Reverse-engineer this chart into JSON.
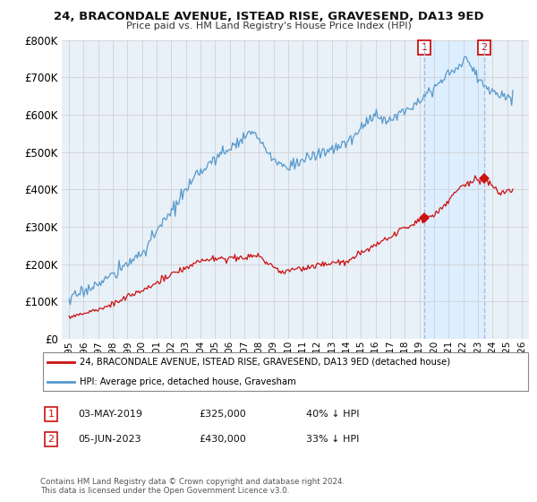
{
  "title": "24, BRACONDALE AVENUE, ISTEAD RISE, GRAVESEND, DA13 9ED",
  "subtitle": "Price paid vs. HM Land Registry's House Price Index (HPI)",
  "ylim": [
    0,
    800000
  ],
  "yticks": [
    0,
    100000,
    200000,
    300000,
    400000,
    500000,
    600000,
    700000,
    800000
  ],
  "xlim_left": 1994.5,
  "xlim_right": 2026.5,
  "hpi_color": "#5599cc",
  "price_color": "#cc1111",
  "vline_color": "#aabbdd",
  "shade_color": "#ddeeff",
  "grid_color": "#cccccc",
  "plot_bg": "#e8f0f8",
  "fig_bg": "#ffffff",
  "sale1_year": 2019.33,
  "sale1_price": 325000,
  "sale1_date": "03-MAY-2019",
  "sale1_pct": "40% ↓ HPI",
  "sale2_year": 2023.42,
  "sale2_price": 430000,
  "sale2_date": "05-JUN-2023",
  "sale2_pct": "33% ↓ HPI",
  "badge_color": "#cc1111",
  "legend1": "24, BRACONDALE AVENUE, ISTEAD RISE, GRAVESEND, DA13 9ED (detached house)",
  "legend2": "HPI: Average price, detached house, Gravesham",
  "footer1": "Contains HM Land Registry data © Crown copyright and database right 2024.",
  "footer2": "This data is licensed under the Open Government Licence v3.0."
}
